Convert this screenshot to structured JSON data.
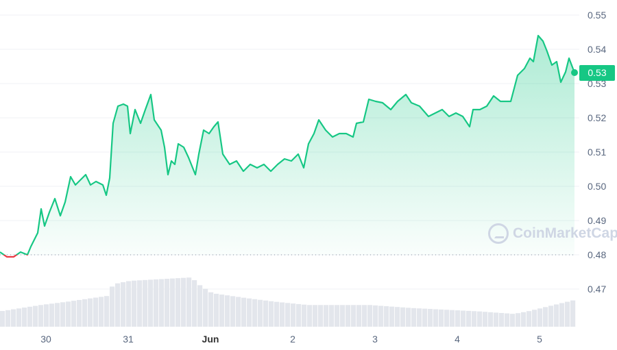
{
  "watermark": "CoinMarketCap",
  "current_price_label": "0.53",
  "colors": {
    "up": "#16c784",
    "down": "#ea3943",
    "volume": "#e3e6ec",
    "grid": "#eff2f5"
  },
  "chart_data": {
    "type": "area",
    "title": "",
    "xlabel": "",
    "ylabel": "",
    "ylim": [
      0.462,
      0.554
    ],
    "grid": true,
    "legend": "none",
    "reference_line": 0.48,
    "y_ticks": [
      "0.55",
      "0.54",
      "0.53",
      "0.52",
      "0.51",
      "0.50",
      "0.49",
      "0.48",
      "0.47"
    ],
    "x_ticks": [
      {
        "label": "30",
        "t": "05-30 00:00"
      },
      {
        "label": "31",
        "t": "05-31 00:00"
      },
      {
        "label": "Jun",
        "t": "06-01 00:00",
        "bold": true
      },
      {
        "label": "2",
        "t": "06-02 00:00"
      },
      {
        "label": "3",
        "t": "06-03 00:00"
      },
      {
        "label": "4",
        "t": "06-04 00:00"
      },
      {
        "label": "5",
        "t": "06-05 00:00"
      }
    ],
    "series": [
      {
        "points": [
          [
            "05-29 10:36",
            0.4808
          ],
          [
            "05-29 12:36",
            0.4794
          ],
          [
            "05-29 14:36",
            0.4794
          ],
          [
            "05-29 16:36",
            0.4808
          ],
          [
            "05-29 18:36",
            0.48
          ],
          [
            "05-29 19:36",
            0.4824
          ],
          [
            "05-29 21:36",
            0.4864
          ],
          [
            "05-29 22:36",
            0.4934
          ],
          [
            "05-29 23:36",
            0.4884
          ],
          [
            "05-30 01:00",
            0.4924
          ],
          [
            "05-30 02:36",
            0.4964
          ],
          [
            "05-30 04:12",
            0.4914
          ],
          [
            "05-30 05:36",
            0.4954
          ],
          [
            "05-30 07:12",
            0.5028
          ],
          [
            "05-30 08:36",
            0.5004
          ],
          [
            "05-30 10:12",
            0.502
          ],
          [
            "05-30 11:36",
            0.5034
          ],
          [
            "05-30 13:00",
            0.5004
          ],
          [
            "05-30 14:36",
            0.5014
          ],
          [
            "05-30 16:36",
            0.5004
          ],
          [
            "05-30 17:36",
            0.4974
          ],
          [
            "05-30 18:36",
            0.5024
          ],
          [
            "05-30 19:36",
            0.5184
          ],
          [
            "05-30 21:00",
            0.5234
          ],
          [
            "05-30 22:36",
            0.524
          ],
          [
            "05-30 23:48",
            0.5234
          ],
          [
            "05-31 00:36",
            0.5154
          ],
          [
            "05-31 02:00",
            0.5224
          ],
          [
            "05-31 03:36",
            0.5184
          ],
          [
            "05-31 05:00",
            0.5224
          ],
          [
            "05-31 06:36",
            0.5268
          ],
          [
            "05-31 07:36",
            0.5194
          ],
          [
            "05-31 09:36",
            0.5164
          ],
          [
            "05-31 10:36",
            0.5114
          ],
          [
            "05-31 11:36",
            0.5034
          ],
          [
            "05-31 12:36",
            0.5074
          ],
          [
            "05-31 13:36",
            0.5064
          ],
          [
            "05-31 14:36",
            0.5124
          ],
          [
            "05-31 16:12",
            0.5114
          ],
          [
            "05-31 17:36",
            0.5084
          ],
          [
            "05-31 19:36",
            0.5034
          ],
          [
            "05-31 20:36",
            0.5094
          ],
          [
            "05-31 22:00",
            0.5164
          ],
          [
            "05-31 23:36",
            0.5154
          ],
          [
            "06-01 01:00",
            0.5174
          ],
          [
            "06-01 02:12",
            0.5188
          ],
          [
            "06-01 03:36",
            0.5094
          ],
          [
            "06-01 05:36",
            0.5064
          ],
          [
            "06-01 07:36",
            0.5074
          ],
          [
            "06-01 09:36",
            0.5044
          ],
          [
            "06-01 11:36",
            0.5064
          ],
          [
            "06-01 13:36",
            0.5054
          ],
          [
            "06-01 15:36",
            0.5064
          ],
          [
            "06-01 17:36",
            0.5044
          ],
          [
            "06-01 19:36",
            0.5064
          ],
          [
            "06-01 21:36",
            0.508
          ],
          [
            "06-01 23:36",
            0.5074
          ],
          [
            "06-02 01:36",
            0.5094
          ],
          [
            "06-02 03:12",
            0.5054
          ],
          [
            "06-02 04:36",
            0.5124
          ],
          [
            "06-02 06:12",
            0.5154
          ],
          [
            "06-02 07:36",
            0.5194
          ],
          [
            "06-02 09:36",
            0.5164
          ],
          [
            "06-02 11:36",
            0.5144
          ],
          [
            "06-02 13:36",
            0.5154
          ],
          [
            "06-02 15:36",
            0.5154
          ],
          [
            "06-02 17:36",
            0.5144
          ],
          [
            "06-02 18:36",
            0.5184
          ],
          [
            "06-02 20:36",
            0.5188
          ],
          [
            "06-02 22:12",
            0.5254
          ],
          [
            "06-03 00:12",
            0.5248
          ],
          [
            "06-03 02:12",
            0.5244
          ],
          [
            "06-03 04:36",
            0.5224
          ],
          [
            "06-03 06:36",
            0.5248
          ],
          [
            "06-03 09:00",
            0.5268
          ],
          [
            "06-03 10:36",
            0.5244
          ],
          [
            "06-03 13:00",
            0.5234
          ],
          [
            "06-03 15:36",
            0.5204
          ],
          [
            "06-03 17:36",
            0.5214
          ],
          [
            "06-03 19:36",
            0.5224
          ],
          [
            "06-03 21:36",
            0.5204
          ],
          [
            "06-03 23:36",
            0.5214
          ],
          [
            "06-04 01:36",
            0.5204
          ],
          [
            "06-04 03:36",
            0.5174
          ],
          [
            "06-04 04:36",
            0.5224
          ],
          [
            "06-04 06:36",
            0.5224
          ],
          [
            "06-04 08:36",
            0.5234
          ],
          [
            "06-04 10:36",
            0.5264
          ],
          [
            "06-04 12:36",
            0.5248
          ],
          [
            "06-04 15:36",
            0.5248
          ],
          [
            "06-04 17:36",
            0.5324
          ],
          [
            "06-04 19:36",
            0.5344
          ],
          [
            "06-04 21:12",
            0.5374
          ],
          [
            "06-04 22:12",
            0.5364
          ],
          [
            "06-04 23:36",
            0.544
          ],
          [
            "06-05 01:00",
            0.5424
          ],
          [
            "06-05 02:12",
            0.5394
          ],
          [
            "06-05 03:36",
            0.5354
          ],
          [
            "06-05 05:00",
            0.5364
          ],
          [
            "06-05 06:12",
            0.5304
          ],
          [
            "06-05 07:36",
            0.5334
          ],
          [
            "06-05 08:36",
            0.5374
          ],
          [
            "06-05 10:12",
            0.5332
          ]
        ]
      }
    ],
    "volume_relative": [
      [
        "05-29 10:36",
        31
      ],
      [
        "05-29 22:36",
        44
      ],
      [
        "05-30 06:36",
        51
      ],
      [
        "05-30 18:36",
        63
      ],
      [
        "05-30 19:36",
        86
      ],
      [
        "05-31 00:36",
        93
      ],
      [
        "05-31 18:36",
        100
      ],
      [
        "05-31 20:36",
        86
      ],
      [
        "06-01 00:36",
        68
      ],
      [
        "06-01 10:36",
        58
      ],
      [
        "06-01 18:36",
        51
      ],
      [
        "06-02 04:36",
        44
      ],
      [
        "06-02 22:36",
        44
      ],
      [
        "06-03 10:36",
        38
      ],
      [
        "06-04 06:36",
        31
      ],
      [
        "06-04 16:36",
        26
      ],
      [
        "06-04 20:36",
        31
      ],
      [
        "06-05 10:12",
        54
      ]
    ]
  }
}
